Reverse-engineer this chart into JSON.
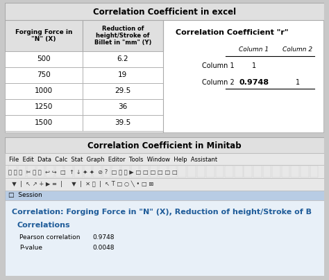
{
  "title_excel": "Correlation Coefficient in excel",
  "title_minitab": "Correlation Coefficient in Minitab",
  "table_header0": "Forging Force in\n\"N\" (X)",
  "table_header1": "Reduction of\nheight/Stroke of\nBillet in \"mm\" (Y)",
  "table_data": [
    [
      "500",
      "6.2"
    ],
    [
      "750",
      "19"
    ],
    [
      "1000",
      "29.5"
    ],
    [
      "1250",
      "36"
    ],
    [
      "1500",
      "39.5"
    ]
  ],
  "corr_title": "Correlation Coefficient \"r\"",
  "session_title": "Correlation: Forging Force in \"N\" (X), Reduction of height/Stroke of B",
  "correlations_label": "Correlations",
  "pearson_label": "Pearson correlation",
  "pearson_value": "0.9748",
  "pvalue_label": "P-value",
  "pvalue_value": "0.0048",
  "menu_items": [
    "File",
    "Edit",
    "Data",
    "Calc",
    "Stat",
    "Graph",
    "Editor",
    "Tools",
    "Window",
    "Help",
    "Assistant"
  ],
  "bg_outer": "#c8c8c8",
  "header_bg": "#e0e0e0",
  "white": "#ffffff",
  "panel_border": "#aaaaaa",
  "session_bar_bg": "#b8cce4",
  "session_content_bg": "#e8f0f8",
  "blue_text": "#1f5c99",
  "toolbar_bg": "#e8e8e8",
  "toolbar_border": "#bbbbbb"
}
